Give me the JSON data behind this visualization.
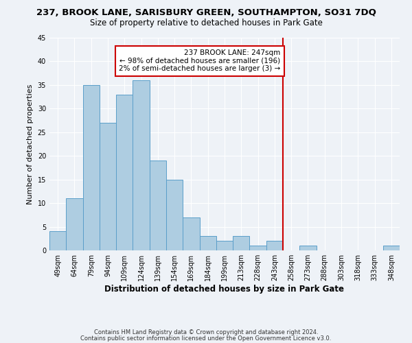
{
  "title_line1": "237, BROOK LANE, SARISBURY GREEN, SOUTHAMPTON, SO31 7DQ",
  "title_line2": "Size of property relative to detached houses in Park Gate",
  "xlabel": "Distribution of detached houses by size in Park Gate",
  "ylabel": "Number of detached properties",
  "bar_labels": [
    "49sqm",
    "64sqm",
    "79sqm",
    "94sqm",
    "109sqm",
    "124sqm",
    "139sqm",
    "154sqm",
    "169sqm",
    "184sqm",
    "199sqm",
    "213sqm",
    "228sqm",
    "243sqm",
    "258sqm",
    "273sqm",
    "288sqm",
    "303sqm",
    "318sqm",
    "333sqm",
    "348sqm"
  ],
  "bar_values": [
    4,
    11,
    35,
    27,
    33,
    36,
    19,
    15,
    7,
    3,
    2,
    3,
    1,
    2,
    0,
    1,
    0,
    0,
    0,
    0,
    1
  ],
  "bar_color": "#aecde1",
  "bar_edge_color": "#5a9ec9",
  "ylim": [
    0,
    45
  ],
  "yticks": [
    0,
    5,
    10,
    15,
    20,
    25,
    30,
    35,
    40,
    45
  ],
  "vline_index": 13,
  "vline_color": "#cc0000",
  "annotation_title": "237 BROOK LANE: 247sqm",
  "annotation_line1": "← 98% of detached houses are smaller (196)",
  "annotation_line2": "2% of semi-detached houses are larger (3) →",
  "annotation_box_edgecolor": "#cc0000",
  "footer_line1": "Contains HM Land Registry data © Crown copyright and database right 2024.",
  "footer_line2": "Contains public sector information licensed under the Open Government Licence v3.0.",
  "background_color": "#eef2f7"
}
